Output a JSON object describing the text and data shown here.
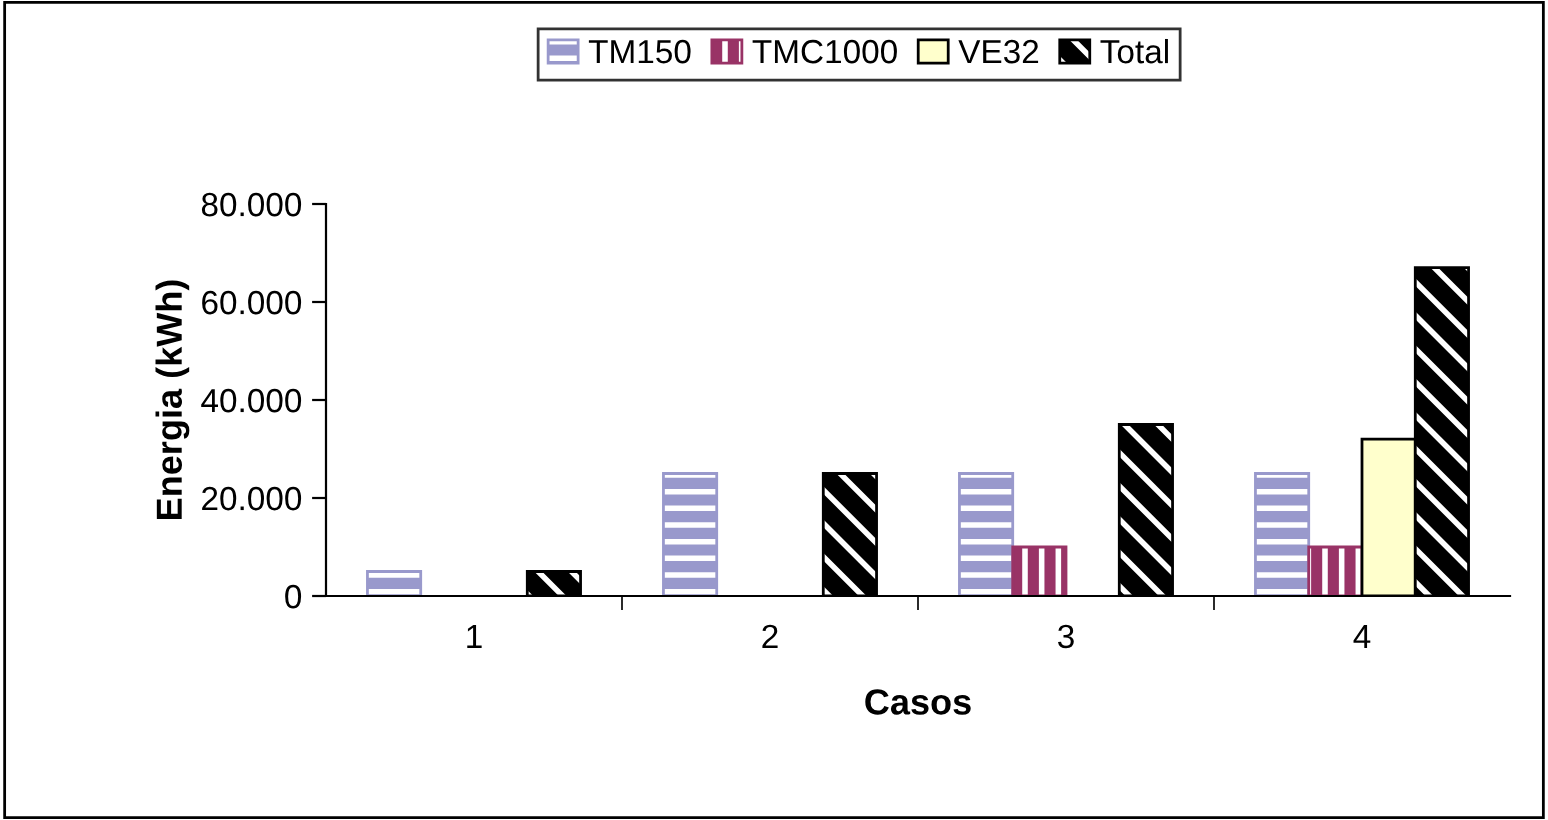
{
  "chart_data": {
    "type": "bar",
    "xlabel": "Casos",
    "ylabel": "Energia (kWh)",
    "categories": [
      "1",
      "2",
      "3",
      "4"
    ],
    "series": [
      {
        "name": "TM150",
        "color": "#9999cc",
        "values": [
          5000,
          25000,
          25000,
          25000
        ]
      },
      {
        "name": "TMC1000",
        "color": "#993366",
        "values": [
          null,
          null,
          10000,
          10000
        ]
      },
      {
        "name": "VE32",
        "color": "#ffffcc",
        "values": [
          null,
          null,
          null,
          32000
        ]
      },
      {
        "name": "Total",
        "color": "#000000",
        "values": [
          5000,
          25000,
          35000,
          67000
        ]
      }
    ],
    "ylim": [
      0,
      80000
    ],
    "yticks": [
      {
        "value": 0,
        "label": "0"
      },
      {
        "value": 20000,
        "label": "20.000"
      },
      {
        "value": 40000,
        "label": "40.000"
      },
      {
        "value": 60000,
        "label": "60.000"
      },
      {
        "value": 80000,
        "label": "80.000"
      }
    ],
    "grid": false,
    "legend": "top"
  }
}
